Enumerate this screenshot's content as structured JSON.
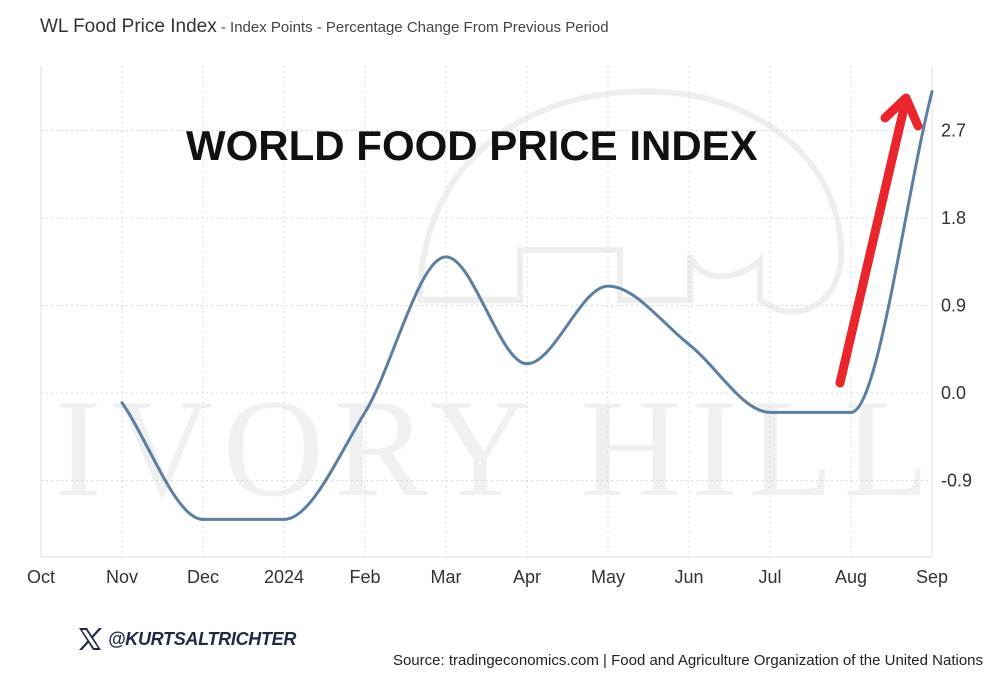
{
  "header": {
    "title": "WL Food Price Index",
    "subtitle": " - Index Points - Percentage Change From Previous Period"
  },
  "overlay_title": "WORLD FOOD PRICE INDEX",
  "watermark": "IVORY HILL",
  "handle": "@KURTSALTRICHTER",
  "source": "Source: tradingeconomics.com | Food and Agriculture Organization of the United Nations",
  "colors": {
    "line": "#5a7fa3",
    "arrow": "#e8262b",
    "grid": "#cfcfcf",
    "text": "#333333"
  },
  "chart_data": {
    "type": "line",
    "x": [
      "Oct",
      "Nov",
      "Dec",
      "2024",
      "Feb",
      "Mar",
      "Apr",
      "May",
      "Jun",
      "Jul",
      "Aug",
      "Sep"
    ],
    "series": [
      {
        "values": [
          null,
          -0.1,
          -1.3,
          -1.3,
          -0.2,
          1.4,
          0.3,
          1.1,
          0.5,
          -0.2,
          -0.2,
          3.1
        ]
      }
    ],
    "yticks": [
      2.7,
      1.8,
      0.9,
      0.0,
      -0.9
    ],
    "ytick_labels": [
      "2.7",
      "1.8",
      "0.9",
      "0.0",
      "-0.9"
    ],
    "ylim": [
      -1.7,
      3.4
    ],
    "grid": true,
    "y_axis_side": "right",
    "annotation": "red arrow pointing up toward Sep"
  }
}
